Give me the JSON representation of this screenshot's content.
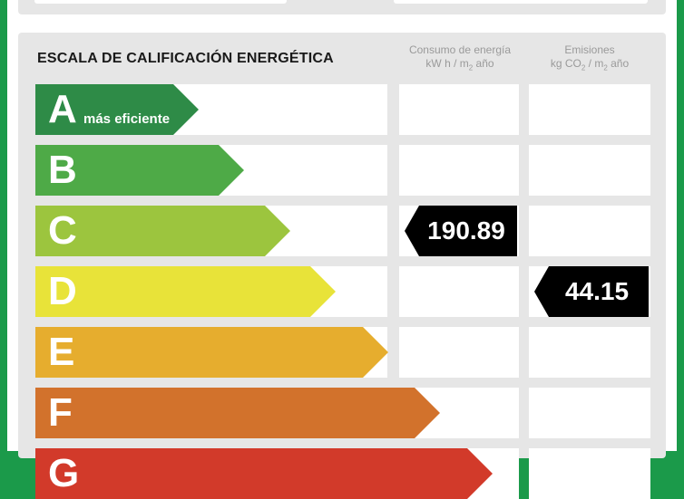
{
  "header": {
    "title": "ESCALA DE CALIFICACIÓN ENERGÉTICA",
    "consumo_line1": "Consumo de energía",
    "consumo_line2a": "kW h / m",
    "consumo_sub": "2",
    "consumo_line2b": " año",
    "emisiones_line1": "Emisiones",
    "emisiones_line2a": "kg CO",
    "emisiones_sub1": "2",
    "emisiones_line2b": " / m",
    "emisiones_sub2": "2",
    "emisiones_line2c": " año"
  },
  "ratings": [
    {
      "letter": "A",
      "sub": "más eficiente",
      "color": "#2e8b47",
      "fill": 0.25
    },
    {
      "letter": "B",
      "sub": "",
      "color": "#4eaa47",
      "fill": 0.32
    },
    {
      "letter": "C",
      "sub": "",
      "color": "#9cc53e",
      "fill": 0.39
    },
    {
      "letter": "D",
      "sub": "",
      "color": "#e8e339",
      "fill": 0.46
    },
    {
      "letter": "E",
      "sub": "",
      "color": "#e6ad2e",
      "fill": 0.54
    },
    {
      "letter": "F",
      "sub": "",
      "color": "#d2722c",
      "fill": 0.62
    },
    {
      "letter": "G",
      "sub": "",
      "color": "#d23a2a",
      "fill": 0.7
    }
  ],
  "consumo": {
    "value": "190.89",
    "rating": "C"
  },
  "emisiones": {
    "value": "44.15",
    "rating": "D"
  }
}
